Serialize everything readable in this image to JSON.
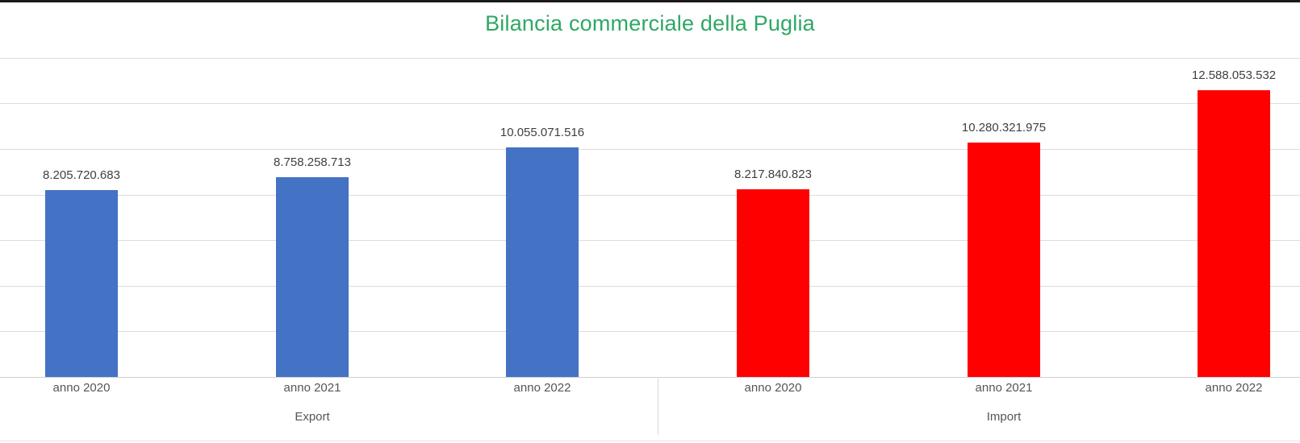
{
  "chart_data": {
    "type": "bar",
    "title": "Bilancia commerciale della Puglia",
    "xlabel": "",
    "ylabel": "",
    "ylim": [
      0,
      14000000000
    ],
    "grid": true,
    "legend": null,
    "groups": [
      {
        "name": "Export",
        "color": "#4472c4",
        "categories": [
          "anno 2020",
          "anno 2021",
          "anno 2022"
        ]
      },
      {
        "name": "Import",
        "color": "#ff0000",
        "categories": [
          "anno 2020",
          "anno 2021",
          "anno 2022"
        ]
      }
    ],
    "categories": [
      "anno 2020",
      "anno 2021",
      "anno 2022",
      "anno 2020",
      "anno 2021",
      "anno 2022"
    ],
    "values": [
      8205720683,
      8758258713,
      10055071516,
      8217840823,
      10280321975,
      12588053532
    ],
    "value_labels": [
      "8.205.720.683",
      "8.758.258.713",
      "10.055.071.516",
      "8.217.840.823",
      "10.280.321.975",
      "12.588.053.532"
    ],
    "colors": [
      "#4472c4",
      "#4472c4",
      "#4472c4",
      "#ff0000",
      "#ff0000",
      "#ff0000"
    ]
  },
  "title": "Bilancia commerciale della Puglia",
  "groups": [
    "Export",
    "Import"
  ],
  "bars": [
    {
      "category": "anno 2020",
      "label": "8.205.720.683",
      "value": 8205720683,
      "color": "#4472c4"
    },
    {
      "category": "anno 2021",
      "label": "8.758.258.713",
      "value": 8758258713,
      "color": "#4472c4"
    },
    {
      "category": "anno 2022",
      "label": "10.055.071.516",
      "value": 10055071516,
      "color": "#4472c4"
    },
    {
      "category": "anno 2020",
      "label": "8.217.840.823",
      "value": 8217840823,
      "color": "#ff0000"
    },
    {
      "category": "anno 2021",
      "label": "10.280.321.975",
      "value": 10280321975,
      "color": "#ff0000"
    },
    {
      "category": "anno 2022",
      "label": "12.588.053.532",
      "value": 12588053532,
      "color": "#ff0000"
    }
  ],
  "colors": {
    "title": "#2ea864",
    "export": "#4472c4",
    "import": "#ff0000"
  }
}
